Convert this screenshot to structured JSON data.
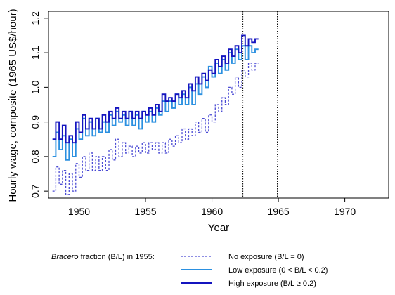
{
  "chart_data": {
    "type": "line",
    "xlabel": "Year",
    "ylabel": "Hourly wage, composite (1965 US$/hour)",
    "xlim": [
      1947.7,
      1973.3
    ],
    "ylim": [
      0.68,
      1.22
    ],
    "xticks": [
      1950,
      1955,
      1960,
      1965,
      1970
    ],
    "xtick_labels": [
      "1950",
      "1955",
      "1960",
      "1965",
      "1970"
    ],
    "yticks": [
      0.7,
      0.8,
      0.9,
      1.0,
      1.1,
      1.2
    ],
    "ytick_labels": [
      "0.7",
      "0.8",
      "0.9",
      "1.0",
      "1.1",
      "1.2"
    ],
    "vlines": [
      1962.33,
      1964.92
    ],
    "step": 0.25,
    "legend": {
      "title_italic": "Bracero",
      "title_rest": " fraction (B/L) in 1955:",
      "placement": "bottom"
    },
    "series": [
      {
        "name": "No exposure (B/L = 0)",
        "color": "#4a4ad4",
        "style": "dashed",
        "x_start": 1948.0,
        "values": [
          0.7,
          0.77,
          0.72,
          0.76,
          0.69,
          0.75,
          0.7,
          0.78,
          0.74,
          0.8,
          0.76,
          0.81,
          0.76,
          0.8,
          0.76,
          0.8,
          0.76,
          0.82,
          0.79,
          0.85,
          0.8,
          0.84,
          0.81,
          0.83,
          0.8,
          0.83,
          0.81,
          0.84,
          0.81,
          0.84,
          0.82,
          0.84,
          0.81,
          0.84,
          0.81,
          0.85,
          0.83,
          0.86,
          0.84,
          0.88,
          0.85,
          0.88,
          0.86,
          0.9,
          0.87,
          0.91,
          0.87,
          0.92,
          0.9,
          0.95,
          0.93,
          0.97,
          0.95,
          1.0,
          0.98,
          1.03,
          1.0,
          1.05,
          1.03,
          1.07,
          1.05,
          1.07
        ]
      },
      {
        "name": "Low exposure (0 < B/L < 0.2)",
        "color": "#2b90e0",
        "style": "solid",
        "x_start": 1948.0,
        "values": [
          0.8,
          0.87,
          0.82,
          0.86,
          0.79,
          0.85,
          0.8,
          0.88,
          0.85,
          0.91,
          0.86,
          0.9,
          0.86,
          0.91,
          0.87,
          0.9,
          0.87,
          0.92,
          0.89,
          0.93,
          0.9,
          0.92,
          0.89,
          0.93,
          0.89,
          0.92,
          0.88,
          0.93,
          0.9,
          0.93,
          0.9,
          0.94,
          0.92,
          0.96,
          0.93,
          0.96,
          0.94,
          0.98,
          0.95,
          0.98,
          0.95,
          1.0,
          0.95,
          1.01,
          0.98,
          1.03,
          1.0,
          1.06,
          1.03,
          1.07,
          1.04,
          1.08,
          1.05,
          1.1,
          1.07,
          1.11,
          1.08,
          1.12,
          1.08,
          1.12,
          1.1,
          1.11
        ]
      },
      {
        "name": "High exposure (B/L ≥ 0.2)",
        "color": "#1414bf",
        "style": "solid",
        "x_start": 1948.0,
        "values": [
          0.85,
          0.9,
          0.85,
          0.89,
          0.84,
          0.86,
          0.84,
          0.9,
          0.87,
          0.92,
          0.88,
          0.91,
          0.88,
          0.91,
          0.88,
          0.92,
          0.9,
          0.93,
          0.91,
          0.94,
          0.91,
          0.93,
          0.91,
          0.93,
          0.91,
          0.93,
          0.91,
          0.93,
          0.92,
          0.94,
          0.92,
          0.95,
          0.93,
          0.98,
          0.96,
          0.97,
          0.96,
          0.98,
          0.97,
          0.99,
          0.97,
          1.01,
          0.99,
          1.03,
          1.01,
          1.04,
          1.02,
          1.05,
          1.04,
          1.08,
          1.06,
          1.09,
          1.07,
          1.11,
          1.09,
          1.12,
          1.1,
          1.15,
          1.12,
          1.14,
          1.13,
          1.14
        ]
      }
    ]
  }
}
